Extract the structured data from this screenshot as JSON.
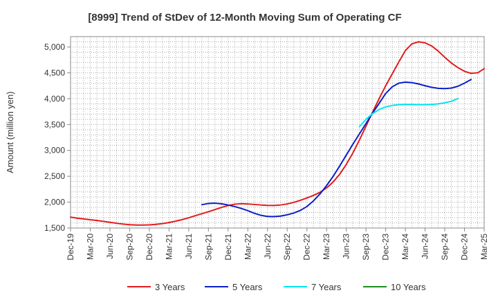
{
  "chart_data": {
    "type": "line",
    "title": "[8999]  Trend of StDev of 12-Month Moving Sum of Operating CF",
    "xlabel": "",
    "ylabel": "Amount (million yen)",
    "ylim": [
      1500,
      5200
    ],
    "yticks": [
      1500,
      2000,
      2500,
      3000,
      3500,
      4000,
      4500,
      5000
    ],
    "ytick_labels": [
      "1,500",
      "2,000",
      "2,500",
      "3,000",
      "3,500",
      "4,000",
      "4,500",
      "5,000"
    ],
    "xlim": [
      0,
      63
    ],
    "xtick_labels": [
      "Dec-19",
      "Mar-20",
      "Jun-20",
      "Sep-20",
      "Dec-20",
      "Mar-21",
      "Jun-21",
      "Sep-21",
      "Dec-21",
      "Mar-22",
      "Jun-22",
      "Sep-22",
      "Dec-22",
      "Mar-23",
      "Jun-23",
      "Sep-23",
      "Dec-23",
      "Mar-24",
      "Jun-24",
      "Sep-24",
      "Dec-24",
      "Mar-25"
    ],
    "grid": true,
    "legend_position": "bottom",
    "series": [
      {
        "name": "3 Years",
        "color": "#e31a1c",
        "start_index": 0,
        "values": [
          1710,
          1690,
          1675,
          1660,
          1645,
          1628,
          1610,
          1592,
          1576,
          1564,
          1557,
          1556,
          1560,
          1570,
          1585,
          1605,
          1632,
          1662,
          1698,
          1738,
          1776,
          1815,
          1856,
          1898,
          1935,
          1960,
          1970,
          1965,
          1955,
          1945,
          1938,
          1935,
          1945,
          1965,
          1995,
          2035,
          2080,
          2130,
          2190,
          2275,
          2390,
          2540,
          2730,
          2950,
          3200,
          3470,
          3740,
          4000,
          4250,
          4480,
          4710,
          4930,
          5060,
          5100,
          5080,
          5020,
          4920,
          4800,
          4690,
          4600,
          4530,
          4490,
          4500,
          4580
        ]
      },
      {
        "name": "5 Years",
        "color": "#0a1ec8",
        "start_index": 20,
        "values": [
          1950,
          1975,
          1980,
          1968,
          1945,
          1915,
          1878,
          1835,
          1785,
          1745,
          1723,
          1720,
          1730,
          1755,
          1790,
          1840,
          1915,
          2025,
          2160,
          2320,
          2500,
          2700,
          2910,
          3120,
          3320,
          3520,
          3720,
          3910,
          4100,
          4230,
          4300,
          4320,
          4310,
          4285,
          4250,
          4220,
          4200,
          4195,
          4205,
          4240,
          4300,
          4370
        ]
      },
      {
        "name": "7 Years",
        "color": "#00e5ee",
        "start_index": 44,
        "values": [
          3460,
          3600,
          3710,
          3790,
          3840,
          3870,
          3885,
          3890,
          3890,
          3885,
          3885,
          3890,
          3900,
          3920,
          3950,
          4000
        ]
      },
      {
        "name": "10 Years",
        "color": "#1a8c1a",
        "start_index": 0,
        "values": []
      }
    ]
  }
}
